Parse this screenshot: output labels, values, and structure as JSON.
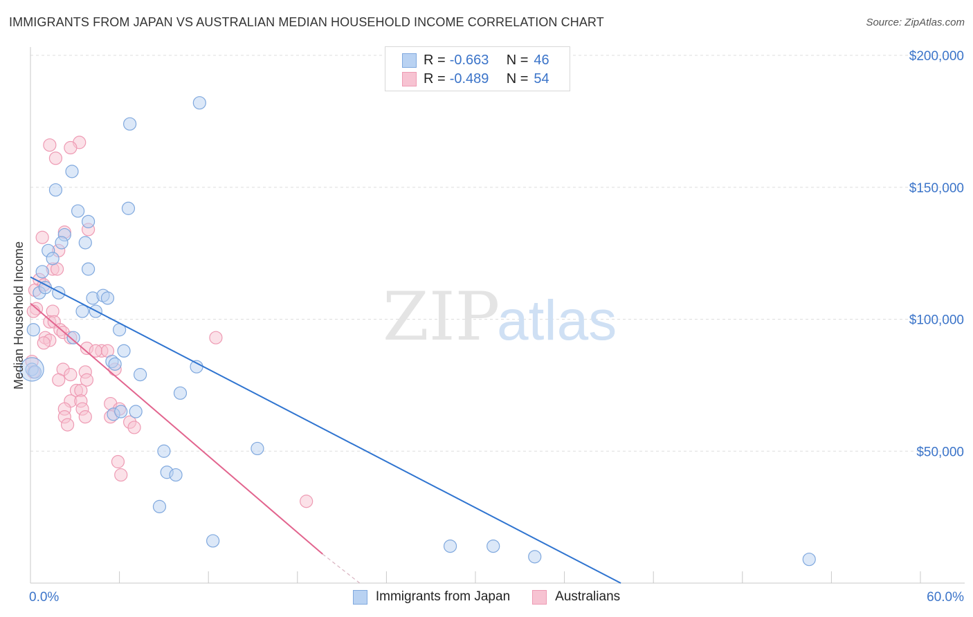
{
  "header": {
    "title": "IMMIGRANTS FROM JAPAN VS AUSTRALIAN MEDIAN HOUSEHOLD INCOME CORRELATION CHART",
    "source": "Source: ZipAtlas.com"
  },
  "watermark": {
    "zip": "ZIP",
    "atlas": "atlas"
  },
  "legend": {
    "rows": [
      {
        "r_label": "R = ",
        "r_value": "-0.663",
        "n_label": "N = ",
        "n_value": "46"
      },
      {
        "r_label": "R = ",
        "r_value": "-0.489",
        "n_label": "N = ",
        "n_value": "54"
      }
    ]
  },
  "colors": {
    "blue_fill": "#b9d2f2",
    "blue_stroke": "#7fa8de",
    "blue_line": "#2f74d0",
    "pink_fill": "#f7c3d2",
    "pink_stroke": "#ee9ab3",
    "pink_line": "#e2648e",
    "axis_text": "#3b74c9",
    "grid": "#dddddd"
  },
  "chart_data": {
    "type": "scatter",
    "title": "IMMIGRANTS FROM JAPAN VS AUSTRALIAN MEDIAN HOUSEHOLD INCOME CORRELATION CHART",
    "xlabel": "",
    "ylabel": "Median Household Income",
    "xlim": [
      0,
      60
    ],
    "ylim": [
      0,
      200000
    ],
    "x_tick_labels": [
      {
        "value": 0,
        "label": "0.0%"
      },
      {
        "value": 60,
        "label": "60.0%"
      }
    ],
    "y_tick_labels": [
      {
        "value": 50000,
        "label": "$50,000"
      },
      {
        "value": 100000,
        "label": "$100,000"
      },
      {
        "value": 150000,
        "label": "$150,000"
      },
      {
        "value": 200000,
        "label": "$200,000"
      }
    ],
    "series": [
      {
        "name": "Immigrants from Japan",
        "color": "#7fa8de",
        "trend": {
          "x0": 0,
          "y0": 116000,
          "x1": 39.8,
          "y1": 0
        },
        "points": [
          [
            11.4,
            182000
          ],
          [
            6.7,
            174000
          ],
          [
            2.8,
            156000
          ],
          [
            1.7,
            149000
          ],
          [
            3.2,
            141000
          ],
          [
            6.6,
            142000
          ],
          [
            3.9,
            137000
          ],
          [
            2.3,
            132000
          ],
          [
            2.1,
            129000
          ],
          [
            3.7,
            129000
          ],
          [
            1.2,
            126000
          ],
          [
            1.5,
            123000
          ],
          [
            3.9,
            119000
          ],
          [
            0.8,
            118000
          ],
          [
            0.6,
            110000
          ],
          [
            1.9,
            110000
          ],
          [
            4.2,
            108000
          ],
          [
            4.9,
            109000
          ],
          [
            5.2,
            108000
          ],
          [
            3.5,
            103000
          ],
          [
            4.4,
            103000
          ],
          [
            6.0,
            96000
          ],
          [
            0.2,
            96000
          ],
          [
            2.9,
            93000
          ],
          [
            6.3,
            88000
          ],
          [
            5.5,
            84000
          ],
          [
            5.7,
            83000
          ],
          [
            11.2,
            82000
          ],
          [
            7.4,
            79000
          ],
          [
            10.1,
            72000
          ],
          [
            5.6,
            64000
          ],
          [
            6.1,
            65000
          ],
          [
            7.1,
            65000
          ],
          [
            15.3,
            51000
          ],
          [
            9.0,
            50000
          ],
          [
            9.2,
            42000
          ],
          [
            9.8,
            41000
          ],
          [
            8.7,
            29000
          ],
          [
            12.3,
            16000
          ],
          [
            28.3,
            14000
          ],
          [
            31.2,
            14000
          ],
          [
            34.0,
            10000
          ],
          [
            52.5,
            9000
          ],
          [
            0.1,
            81000
          ],
          [
            0.3,
            80000
          ],
          [
            1.0,
            112000
          ]
        ]
      },
      {
        "name": "Australians",
        "color": "#ee9ab3",
        "trend": {
          "x0": 0,
          "y0": 106000,
          "x1": 19.7,
          "y1": 11000,
          "dash_x1": 22.2,
          "dash_y1": 0
        },
        "points": [
          [
            1.3,
            166000
          ],
          [
            3.3,
            167000
          ],
          [
            2.7,
            165000
          ],
          [
            1.7,
            161000
          ],
          [
            3.9,
            134000
          ],
          [
            2.3,
            133000
          ],
          [
            0.8,
            131000
          ],
          [
            1.9,
            126000
          ],
          [
            1.5,
            119000
          ],
          [
            1.8,
            119000
          ],
          [
            0.6,
            115000
          ],
          [
            0.9,
            113000
          ],
          [
            0.3,
            111000
          ],
          [
            0.4,
            104000
          ],
          [
            1.5,
            103000
          ],
          [
            0.2,
            103000
          ],
          [
            1.3,
            99000
          ],
          [
            1.6,
            99000
          ],
          [
            2.0,
            96000
          ],
          [
            2.2,
            95000
          ],
          [
            1.0,
            93000
          ],
          [
            1.3,
            92000
          ],
          [
            0.9,
            91000
          ],
          [
            2.7,
            93000
          ],
          [
            12.5,
            93000
          ],
          [
            3.8,
            89000
          ],
          [
            4.8,
            88000
          ],
          [
            4.4,
            88000
          ],
          [
            5.2,
            88000
          ],
          [
            5.7,
            81000
          ],
          [
            2.2,
            81000
          ],
          [
            3.7,
            80000
          ],
          [
            2.7,
            79000
          ],
          [
            1.9,
            77000
          ],
          [
            3.8,
            77000
          ],
          [
            3.1,
            73000
          ],
          [
            3.4,
            73000
          ],
          [
            2.7,
            69000
          ],
          [
            3.4,
            69000
          ],
          [
            5.4,
            68000
          ],
          [
            2.3,
            66000
          ],
          [
            3.5,
            66000
          ],
          [
            6.0,
            66000
          ],
          [
            3.7,
            63000
          ],
          [
            2.3,
            63000
          ],
          [
            5.4,
            63000
          ],
          [
            6.7,
            61000
          ],
          [
            2.5,
            60000
          ],
          [
            7.0,
            59000
          ],
          [
            5.9,
            46000
          ],
          [
            6.1,
            41000
          ],
          [
            18.6,
            31000
          ],
          [
            0.1,
            84000
          ],
          [
            0.2,
            80000
          ]
        ]
      }
    ]
  }
}
